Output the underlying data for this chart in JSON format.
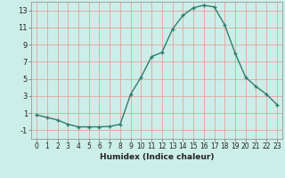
{
  "x": [
    0,
    1,
    2,
    3,
    4,
    5,
    6,
    7,
    8,
    9,
    10,
    11,
    12,
    13,
    14,
    15,
    16,
    17,
    18,
    19,
    20,
    21,
    22,
    23
  ],
  "y": [
    0.8,
    0.5,
    0.2,
    -0.3,
    -0.6,
    -0.6,
    -0.6,
    -0.55,
    -0.3,
    3.2,
    5.2,
    7.6,
    8.1,
    10.8,
    12.4,
    13.3,
    13.6,
    13.4,
    11.3,
    8.0,
    5.2,
    4.1,
    3.2,
    2.0
  ],
  "xlabel": "Humidex (Indice chaleur)",
  "line_color": "#2e7d6e",
  "marker": "+",
  "marker_size": 3.5,
  "marker_lw": 1.0,
  "line_width": 1.0,
  "bg_color": "#cceee8",
  "grid_color": "#e8a0a0",
  "xlim": [
    -0.5,
    23.5
  ],
  "ylim": [
    -2.0,
    14.0
  ],
  "yticks": [
    -1,
    1,
    3,
    5,
    7,
    9,
    11,
    13
  ],
  "xticks": [
    0,
    1,
    2,
    3,
    4,
    5,
    6,
    7,
    8,
    9,
    10,
    11,
    12,
    13,
    14,
    15,
    16,
    17,
    18,
    19,
    20,
    21,
    22,
    23
  ],
  "xlabel_fontsize": 6.5,
  "tick_fontsize": 5.5,
  "ytick_fontsize": 6.0
}
